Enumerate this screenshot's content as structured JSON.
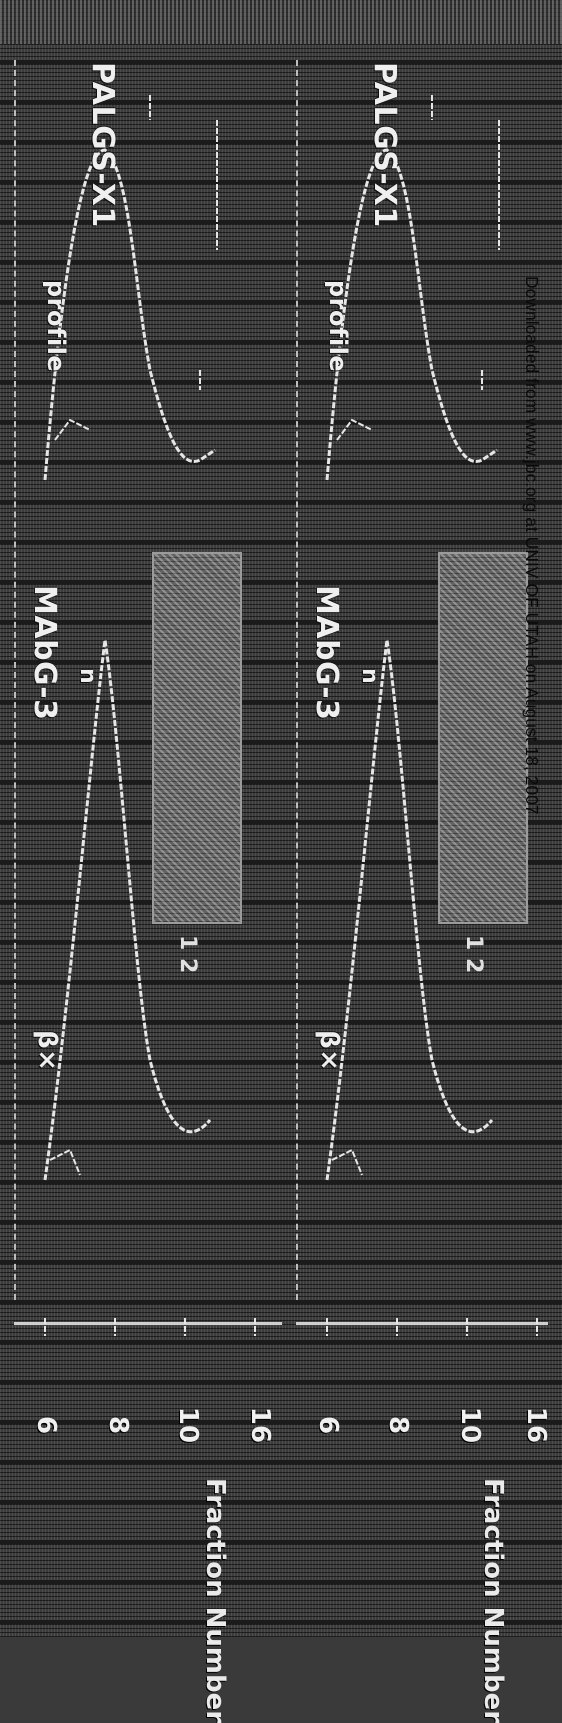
{
  "watermark": "Downloaded from www.jbc.org at UNIV OF UTAH on August 18, 2007",
  "panels": [
    {
      "profile_label": "PALGS-X1",
      "profile_sublabel": "profile",
      "gel_label": "MAbG-3",
      "gel_sublabel": "n",
      "gel_lanes": "1 2",
      "lower_label": "β×",
      "inset_label": "",
      "x_ticks": [
        "6",
        "8",
        "10",
        "16"
      ],
      "x_label": "Fraction Number"
    },
    {
      "profile_label": "PALGS-X1",
      "profile_sublabel": "profile",
      "gel_label": "MAbG-3",
      "gel_sublabel": "n",
      "gel_lanes": "1 2",
      "lower_label": "β×",
      "inset_label": "",
      "x_ticks": [
        "6",
        "8",
        "10",
        "16"
      ],
      "x_label": "Fraction Number"
    }
  ],
  "colors": {
    "background": "#3a3a3a",
    "trace": "#e6e6e6",
    "band": "#7a7a7a",
    "watermark": "#0a0a0a"
  }
}
